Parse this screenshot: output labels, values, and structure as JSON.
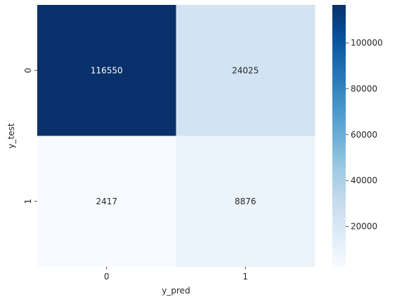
{
  "chart_data": {
    "type": "heatmap",
    "title": "",
    "xlabel": "y_pred",
    "ylabel": "y_test",
    "x_categories": [
      "0",
      "1"
    ],
    "y_categories": [
      "0",
      "1"
    ],
    "values": [
      [
        116550,
        24025
      ],
      [
        2417,
        8876
      ]
    ],
    "colormap": "Blues",
    "colorbar": {
      "min": 2417,
      "max": 116550,
      "ticks": [
        20000,
        40000,
        60000,
        80000,
        100000
      ],
      "tick_labels": [
        "20000",
        "40000",
        "60000",
        "80000",
        "100000"
      ]
    },
    "colors": {
      "low": "#f7fbff",
      "high": "#08306b",
      "text_dark": "#262626",
      "text_light": "#ffffff"
    },
    "grid": false,
    "legend": "colorbar-right"
  }
}
